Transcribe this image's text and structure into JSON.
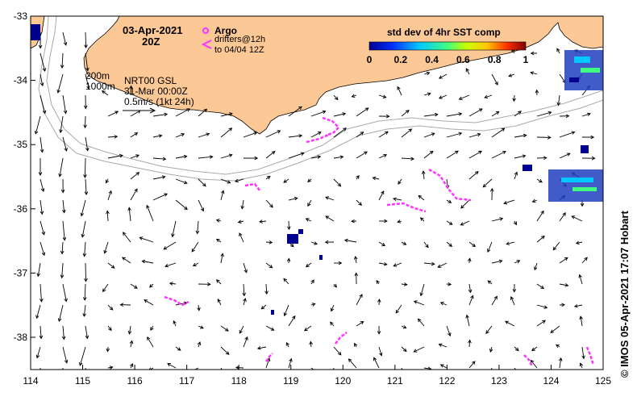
{
  "map": {
    "date": "03-Apr-2021",
    "time": "20Z",
    "legend_argo": "Argo",
    "legend_drifters_1": "drifters@12h",
    "legend_drifters_2": "to 04/04 12Z",
    "contour_200": "200m",
    "contour_1000": "1000m",
    "product": "NRT00 GSL",
    "product_date": "31-Mar 00:00Z",
    "vector_scale": "0.5m/s (1kt 24h)",
    "colorbar_title": "std dev of 4hr SST comp",
    "colorbar_ticks": [
      "0",
      "0.2",
      "0.4",
      "0.6",
      "0.8",
      "1"
    ],
    "credit": "© IMOS 05-Apr-2021 17:07 Hobart",
    "x_ticks": [
      "114",
      "115",
      "116",
      "117",
      "118",
      "119",
      "120",
      "121",
      "122",
      "123",
      "124",
      "125"
    ],
    "y_ticks": [
      "-33",
      "-34",
      "-35",
      "-36",
      "-37",
      "-38"
    ],
    "colors": {
      "land": "#fcc896",
      "argo": "#ff33ff",
      "drifter": "#ff33ff",
      "contour": "#aaaaaa"
    }
  }
}
